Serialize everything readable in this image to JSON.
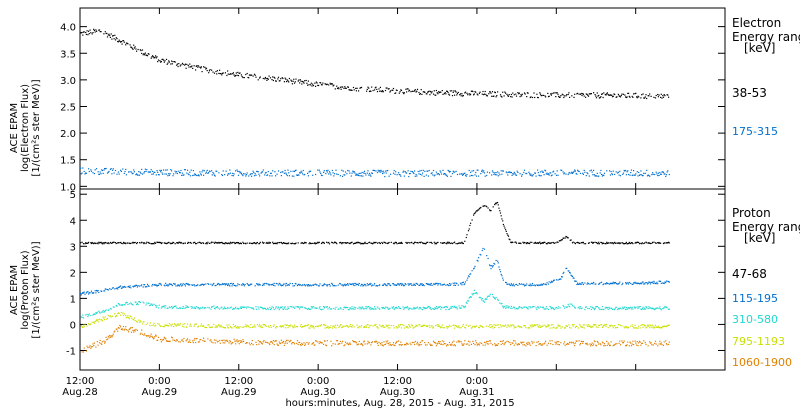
{
  "chart_data": [
    {
      "type": "scatter",
      "panel": "electron",
      "ylabel_lines": [
        "ACE EPAM",
        "log(Electron Flux)",
        "[1/(cm²s ster MeV)]"
      ],
      "ylim": [
        0.95,
        4.35
      ],
      "yticks": [
        "1.0",
        "1.5",
        "2.0",
        "2.5",
        "3.0",
        "3.5",
        "4.0"
      ],
      "ytick_values": [
        1.0,
        1.5,
        2.0,
        2.5,
        3.0,
        3.5,
        4.0
      ],
      "legend_title_lines": [
        "Electron",
        "Energy range"
      ],
      "legend_unit": "[keV]",
      "grid": false,
      "series": [
        {
          "name": "38-53",
          "color": "#000000",
          "x_hours": [
            0,
            3,
            6,
            9,
            12,
            18,
            24,
            30,
            36,
            42,
            48,
            54,
            60,
            66,
            72,
            78,
            84,
            89
          ],
          "y": [
            3.88,
            3.93,
            3.75,
            3.55,
            3.38,
            3.22,
            3.1,
            3.02,
            2.92,
            2.85,
            2.8,
            2.77,
            2.75,
            2.73,
            2.72,
            2.72,
            2.71,
            2.7
          ],
          "noise": 0.05
        },
        {
          "name": "175-315",
          "color": "#0070d0",
          "x_hours": [
            0,
            12,
            24,
            36,
            48,
            60,
            72,
            84,
            89
          ],
          "y": [
            1.3,
            1.27,
            1.26,
            1.26,
            1.25,
            1.26,
            1.26,
            1.26,
            1.25
          ],
          "noise": 0.06
        }
      ]
    },
    {
      "type": "scatter",
      "panel": "proton",
      "ylabel_lines": [
        "ACE EPAM",
        "log(Proton Flux)",
        "[1/(cm²s ster MeV)]"
      ],
      "ylim": [
        -1.75,
        5.2
      ],
      "yticks": [
        "-1",
        "0",
        "1",
        "2",
        "3",
        "4",
        "5"
      ],
      "ytick_values": [
        -1,
        0,
        1,
        2,
        3,
        4,
        5
      ],
      "legend_title_lines": [
        "Proton",
        "Energy range"
      ],
      "legend_unit": "[keV]",
      "grid": false,
      "series": [
        {
          "name": "47-68",
          "color": "#000000",
          "x_hours": [
            0,
            10,
            20,
            30,
            40,
            50,
            58,
            59.5,
            61,
            62,
            63,
            64,
            65,
            66,
            67,
            69,
            72,
            73.5,
            74.5,
            76,
            80,
            89
          ],
          "y": [
            3.15,
            3.15,
            3.15,
            3.15,
            3.15,
            3.15,
            3.15,
            4.3,
            4.6,
            4.4,
            4.75,
            3.8,
            3.2,
            3.15,
            3.15,
            3.15,
            3.15,
            3.4,
            3.15,
            3.15,
            3.15,
            3.15
          ],
          "noise": 0.03
        },
        {
          "name": "115-195",
          "color": "#0070d0",
          "x_hours": [
            0,
            3,
            6,
            12,
            24,
            36,
            48,
            56,
            58,
            59.5,
            61,
            62,
            63,
            64,
            65,
            67,
            70,
            72.5,
            73.5,
            75,
            78,
            84,
            89
          ],
          "y": [
            1.2,
            1.3,
            1.45,
            1.55,
            1.55,
            1.55,
            1.55,
            1.55,
            1.6,
            2.2,
            3.0,
            2.2,
            2.5,
            1.6,
            1.55,
            1.55,
            1.55,
            1.75,
            2.2,
            1.6,
            1.6,
            1.6,
            1.65
          ],
          "noise": 0.05
        },
        {
          "name": "310-580",
          "color": "#20d8d0",
          "x_hours": [
            0,
            3,
            6,
            9,
            12,
            24,
            36,
            48,
            56,
            58,
            59.5,
            61,
            62,
            64,
            66,
            72,
            74,
            76,
            84,
            89
          ],
          "y": [
            0.3,
            0.5,
            0.8,
            0.85,
            0.7,
            0.65,
            0.65,
            0.65,
            0.65,
            0.7,
            1.3,
            0.9,
            1.2,
            0.7,
            0.65,
            0.65,
            0.75,
            0.65,
            0.65,
            0.65
          ],
          "noise": 0.06
        },
        {
          "name": "795-1193",
          "color": "#c8e000",
          "x_hours": [
            0,
            3,
            6,
            9,
            12,
            24,
            36,
            48,
            60,
            72,
            84,
            89
          ],
          "y": [
            -0.1,
            0.2,
            0.45,
            0.1,
            0.0,
            -0.05,
            -0.05,
            -0.05,
            -0.05,
            -0.05,
            -0.05,
            -0.05
          ],
          "noise": 0.07
        },
        {
          "name": "1060-1900",
          "color": "#e08000",
          "x_hours": [
            0,
            2,
            4,
            6,
            9,
            12,
            24,
            36,
            48,
            60,
            72,
            84,
            89
          ],
          "y": [
            -1.0,
            -0.8,
            -0.55,
            -0.1,
            -0.25,
            -0.55,
            -0.65,
            -0.7,
            -0.7,
            -0.7,
            -0.7,
            -0.7,
            -0.7
          ],
          "noise": 0.1
        }
      ]
    }
  ],
  "x_axis": {
    "tick_hours": [
      0,
      12,
      24,
      36,
      48,
      60,
      72,
      84
    ],
    "tick_labels_top": [
      "12:00",
      "0:00",
      "12:00",
      "0:00",
      "12:00",
      "0:00"
    ],
    "tick_labels_bottom": [
      "Aug.28",
      "Aug.29",
      "Aug.29",
      "Aug.30",
      "Aug.30",
      "Aug.31"
    ],
    "label_hours": [
      0,
      12,
      24,
      36,
      48,
      60
    ],
    "xlim_hours": [
      0,
      97.5
    ],
    "xlabel": "hours:minutes, Aug. 28, 2015 - Aug. 31, 2015"
  }
}
